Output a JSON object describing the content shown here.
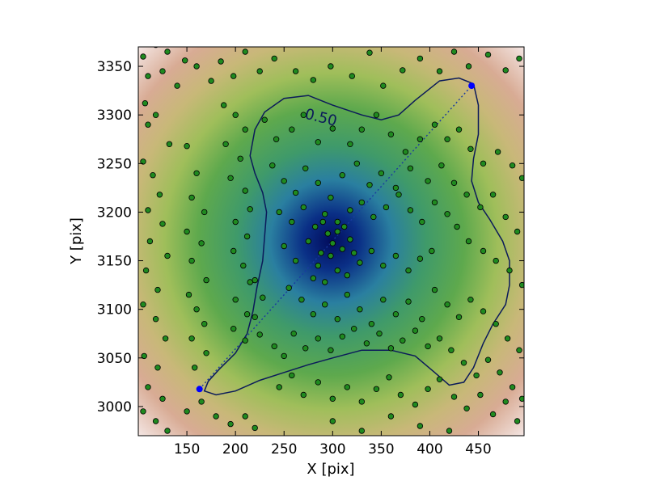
{
  "chart_data": {
    "type": "scatter",
    "title": "",
    "xlabel": "X [pix]",
    "ylabel": "Y [pix]",
    "xlim": [
      100,
      497
    ],
    "ylim": [
      2970,
      3370
    ],
    "xticks": [
      150,
      200,
      250,
      300,
      350,
      400,
      450
    ],
    "yticks": [
      3000,
      3050,
      3100,
      3150,
      3200,
      3250,
      3300,
      3350
    ],
    "grid": false,
    "background": {
      "type": "heatmap",
      "colormap": "gist_earth",
      "center": [
        300,
        3175
      ],
      "description": "density map, dark blue at center rising through green, tan to pink-white at edges"
    },
    "contour": {
      "level_label": "0.50",
      "color": "#0b1a5a",
      "path": [
        [
          168,
          3016
        ],
        [
          180,
          3012
        ],
        [
          200,
          3016
        ],
        [
          225,
          3027
        ],
        [
          250,
          3035
        ],
        [
          275,
          3043
        ],
        [
          300,
          3050
        ],
        [
          330,
          3058
        ],
        [
          360,
          3058
        ],
        [
          385,
          3052
        ],
        [
          405,
          3035
        ],
        [
          420,
          3022
        ],
        [
          435,
          3025
        ],
        [
          445,
          3040
        ],
        [
          455,
          3065
        ],
        [
          465,
          3085
        ],
        [
          478,
          3105
        ],
        [
          482,
          3125
        ],
        [
          482,
          3150
        ],
        [
          475,
          3170
        ],
        [
          462,
          3192
        ],
        [
          450,
          3210
        ],
        [
          443,
          3232
        ],
        [
          445,
          3255
        ],
        [
          450,
          3280
        ],
        [
          450,
          3310
        ],
        [
          445,
          3332
        ],
        [
          430,
          3338
        ],
        [
          410,
          3335
        ],
        [
          385,
          3315
        ],
        [
          368,
          3300
        ],
        [
          350,
          3295
        ],
        [
          330,
          3300
        ],
        [
          300,
          3310
        ],
        [
          275,
          3320
        ],
        [
          250,
          3317
        ],
        [
          230,
          3303
        ],
        [
          220,
          3285
        ],
        [
          215,
          3258
        ],
        [
          220,
          3240
        ],
        [
          228,
          3220
        ],
        [
          232,
          3200
        ],
        [
          230,
          3175
        ],
        [
          228,
          3150
        ],
        [
          222,
          3122
        ],
        [
          218,
          3098
        ],
        [
          212,
          3075
        ],
        [
          200,
          3055
        ],
        [
          183,
          3038
        ],
        [
          172,
          3026
        ]
      ]
    },
    "diagonal": {
      "start": [
        163,
        3018
      ],
      "end": [
        443,
        3330
      ],
      "style": "dotted",
      "color": "#1a3aa0",
      "endpoint_color": "#0000ff"
    },
    "series": [
      {
        "marker_color": "#1f8a1f",
        "points": [
          [
            105,
            3360
          ],
          [
            118,
            3372
          ],
          [
            130,
            3365
          ],
          [
            148,
            3356
          ],
          [
            110,
            3340
          ],
          [
            125,
            3345
          ],
          [
            140,
            3330
          ],
          [
            160,
            3350
          ],
          [
            175,
            3335
          ],
          [
            185,
            3355
          ],
          [
            198,
            3340
          ],
          [
            210,
            3365
          ],
          [
            225,
            3345
          ],
          [
            240,
            3358
          ],
          [
            262,
            3345
          ],
          [
            280,
            3336
          ],
          [
            298,
            3350
          ],
          [
            320,
            3340
          ],
          [
            338,
            3364
          ],
          [
            352,
            3330
          ],
          [
            372,
            3346
          ],
          [
            390,
            3358
          ],
          [
            410,
            3345
          ],
          [
            425,
            3365
          ],
          [
            440,
            3350
          ],
          [
            460,
            3362
          ],
          [
            478,
            3346
          ],
          [
            492,
            3358
          ],
          [
            107,
            3312
          ],
          [
            110,
            3290
          ],
          [
            118,
            3300
          ],
          [
            132,
            3270
          ],
          [
            105,
            3252
          ],
          [
            115,
            3238
          ],
          [
            122,
            3218
          ],
          [
            110,
            3202
          ],
          [
            125,
            3188
          ],
          [
            112,
            3170
          ],
          [
            130,
            3155
          ],
          [
            108,
            3140
          ],
          [
            120,
            3120
          ],
          [
            105,
            3105
          ],
          [
            118,
            3090
          ],
          [
            128,
            3070
          ],
          [
            106,
            3052
          ],
          [
            120,
            3040
          ],
          [
            110,
            3020
          ],
          [
            125,
            3008
          ],
          [
            105,
            2995
          ],
          [
            118,
            2985
          ],
          [
            130,
            2975
          ],
          [
            150,
            3268
          ],
          [
            160,
            3240
          ],
          [
            155,
            3215
          ],
          [
            168,
            3200
          ],
          [
            150,
            3180
          ],
          [
            165,
            3168
          ],
          [
            155,
            3150
          ],
          [
            170,
            3130
          ],
          [
            152,
            3115
          ],
          [
            160,
            3100
          ],
          [
            168,
            3085
          ],
          [
            155,
            3070
          ],
          [
            170,
            3055
          ],
          [
            158,
            3040
          ],
          [
            165,
            3005
          ],
          [
            150,
            2995
          ],
          [
            180,
            2990
          ],
          [
            195,
            2982
          ],
          [
            210,
            2990
          ],
          [
            220,
            2978
          ],
          [
            188,
            3310
          ],
          [
            200,
            3300
          ],
          [
            210,
            3285
          ],
          [
            190,
            3270
          ],
          [
            205,
            3255
          ],
          [
            195,
            3235
          ],
          [
            210,
            3222
          ],
          [
            215,
            3203
          ],
          [
            200,
            3190
          ],
          [
            212,
            3175
          ],
          [
            198,
            3160
          ],
          [
            208,
            3145
          ],
          [
            215,
            3128
          ],
          [
            200,
            3110
          ],
          [
            212,
            3095
          ],
          [
            198,
            3080
          ],
          [
            210,
            3068
          ],
          [
            225,
            3074
          ],
          [
            220,
            3092
          ],
          [
            228,
            3112
          ],
          [
            220,
            3130
          ],
          [
            240,
            3062
          ],
          [
            250,
            3052
          ],
          [
            230,
            3295
          ],
          [
            242,
            3275
          ],
          [
            258,
            3285
          ],
          [
            270,
            3300
          ],
          [
            285,
            3272
          ],
          [
            300,
            3286
          ],
          [
            318,
            3270
          ],
          [
            330,
            3285
          ],
          [
            345,
            3300
          ],
          [
            360,
            3280
          ],
          [
            375,
            3262
          ],
          [
            390,
            3275
          ],
          [
            405,
            3290
          ],
          [
            418,
            3275
          ],
          [
            430,
            3285
          ],
          [
            442,
            3265
          ],
          [
            455,
            3250
          ],
          [
            470,
            3262
          ],
          [
            485,
            3248
          ],
          [
            495,
            3235
          ],
          [
            238,
            3248
          ],
          [
            250,
            3232
          ],
          [
            262,
            3220
          ],
          [
            272,
            3245
          ],
          [
            285,
            3230
          ],
          [
            298,
            3215
          ],
          [
            310,
            3238
          ],
          [
            325,
            3250
          ],
          [
            338,
            3228
          ],
          [
            350,
            3240
          ],
          [
            365,
            3225
          ],
          [
            380,
            3245
          ],
          [
            398,
            3232
          ],
          [
            412,
            3248
          ],
          [
            425,
            3230
          ],
          [
            438,
            3218
          ],
          [
            452,
            3205
          ],
          [
            465,
            3218
          ],
          [
            478,
            3195
          ],
          [
            490,
            3180
          ],
          [
            245,
            3200
          ],
          [
            258,
            3190
          ],
          [
            270,
            3205
          ],
          [
            282,
            3185
          ],
          [
            292,
            3198
          ],
          [
            305,
            3190
          ],
          [
            318,
            3202
          ],
          [
            330,
            3210
          ],
          [
            342,
            3195
          ],
          [
            355,
            3205
          ],
          [
            368,
            3218
          ],
          [
            380,
            3202
          ],
          [
            392,
            3190
          ],
          [
            405,
            3210
          ],
          [
            418,
            3198
          ],
          [
            428,
            3185
          ],
          [
            440,
            3170
          ],
          [
            455,
            3160
          ],
          [
            468,
            3150
          ],
          [
            482,
            3140
          ],
          [
            495,
            3125
          ],
          [
            250,
            3165
          ],
          [
            262,
            3150
          ],
          [
            275,
            3170
          ],
          [
            288,
            3158
          ],
          [
            295,
            3178
          ],
          [
            300,
            3168
          ],
          [
            305,
            3180
          ],
          [
            310,
            3162
          ],
          [
            298,
            3155
          ],
          [
            290,
            3190
          ],
          [
            312,
            3185
          ],
          [
            318,
            3172
          ],
          [
            322,
            3158
          ],
          [
            285,
            3145
          ],
          [
            280,
            3132
          ],
          [
            292,
            3128
          ],
          [
            305,
            3140
          ],
          [
            315,
            3135
          ],
          [
            328,
            3148
          ],
          [
            340,
            3160
          ],
          [
            352,
            3145
          ],
          [
            365,
            3155
          ],
          [
            378,
            3140
          ],
          [
            390,
            3152
          ],
          [
            402,
            3160
          ],
          [
            255,
            3122
          ],
          [
            268,
            3110
          ],
          [
            280,
            3095
          ],
          [
            292,
            3105
          ],
          [
            305,
            3090
          ],
          [
            315,
            3115
          ],
          [
            328,
            3100
          ],
          [
            340,
            3085
          ],
          [
            352,
            3110
          ],
          [
            365,
            3095
          ],
          [
            378,
            3108
          ],
          [
            392,
            3090
          ],
          [
            405,
            3120
          ],
          [
            418,
            3105
          ],
          [
            430,
            3092
          ],
          [
            442,
            3110
          ],
          [
            455,
            3098
          ],
          [
            468,
            3085
          ],
          [
            480,
            3070
          ],
          [
            492,
            3058
          ],
          [
            260,
            3075
          ],
          [
            272,
            3060
          ],
          [
            285,
            3070
          ],
          [
            298,
            3058
          ],
          [
            310,
            3072
          ],
          [
            322,
            3080
          ],
          [
            335,
            3065
          ],
          [
            348,
            3075
          ],
          [
            360,
            3060
          ],
          [
            372,
            3068
          ],
          [
            385,
            3078
          ],
          [
            398,
            3062
          ],
          [
            410,
            3070
          ],
          [
            422,
            3058
          ],
          [
            435,
            3045
          ],
          [
            448,
            3032
          ],
          [
            460,
            3048
          ],
          [
            472,
            3035
          ],
          [
            485,
            3020
          ],
          [
            495,
            3008
          ],
          [
            245,
            3020
          ],
          [
            258,
            3032
          ],
          [
            270,
            3012
          ],
          [
            285,
            3025
          ],
          [
            300,
            3008
          ],
          [
            315,
            3020
          ],
          [
            330,
            3005
          ],
          [
            345,
            3018
          ],
          [
            358,
            3030
          ],
          [
            370,
            3012
          ],
          [
            385,
            3002
          ],
          [
            398,
            3018
          ],
          [
            410,
            3028
          ],
          [
            425,
            3010
          ],
          [
            438,
            2998
          ],
          [
            452,
            3012
          ],
          [
            465,
            2992
          ],
          [
            478,
            3005
          ],
          [
            490,
            2985
          ],
          [
            300,
            2985
          ],
          [
            330,
            2975
          ],
          [
            360,
            2990
          ],
          [
            390,
            2980
          ],
          [
            420,
            2975
          ]
        ]
      }
    ]
  }
}
